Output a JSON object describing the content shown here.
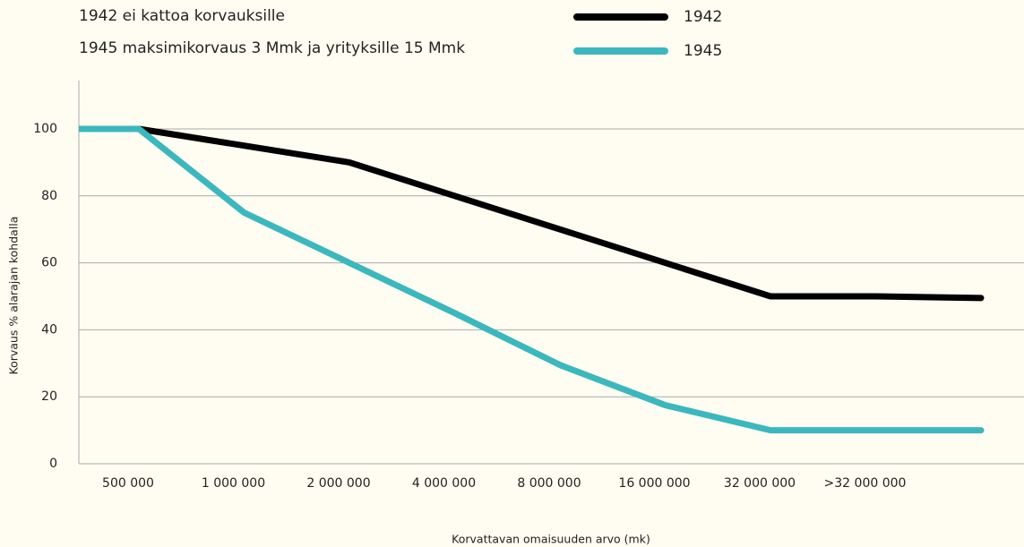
{
  "chart_data": {
    "type": "line",
    "notes": [
      "1942 ei kattoa korvauksille",
      "1945 maksimikorvaus 3 Mmk ja yrityksille 15 Mmk"
    ],
    "xlabel": "Korvattavan omaisuuden arvo (mk)",
    "ylabel": "Korvaus % alarajan kohdalla",
    "categories": [
      "500 000",
      "1 000 000",
      "2 000 000",
      "4 000 000",
      "8 000 000",
      "16 000 000",
      "32 000 000",
      ">32 000 000",
      null
    ],
    "series": [
      {
        "name": "1942",
        "color": "#000000",
        "values": [
          100,
          95,
          90,
          80,
          70,
          60,
          50,
          50,
          49.5
        ]
      },
      {
        "name": "1945",
        "color": "#3bb8bd",
        "values": [
          100,
          75,
          60,
          45,
          29.5,
          17.5,
          10,
          10,
          10
        ]
      }
    ],
    "ylim": [
      0,
      100
    ],
    "yticks": [
      0,
      20,
      40,
      60,
      80,
      100
    ],
    "grid": true
  }
}
